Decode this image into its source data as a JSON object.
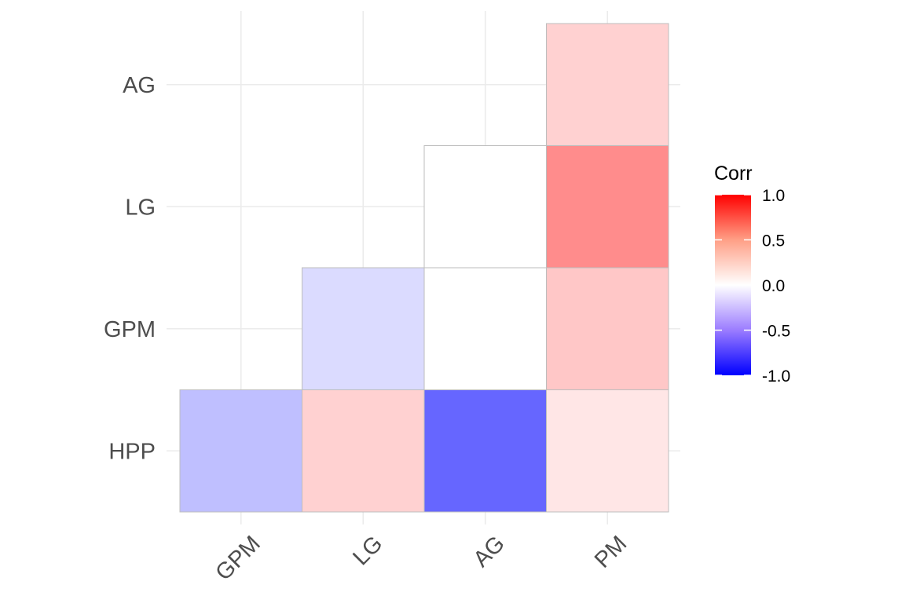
{
  "chart_data": {
    "type": "heatmap",
    "x_categories": [
      "GPM",
      "LG",
      "AG",
      "PM"
    ],
    "y_categories": [
      "HPP",
      "GPM",
      "LG",
      "AG"
    ],
    "cells": [
      {
        "x": "GPM",
        "y": "HPP",
        "value": -0.25
      },
      {
        "x": "LG",
        "y": "HPP",
        "value": 0.18
      },
      {
        "x": "AG",
        "y": "HPP",
        "value": -0.6
      },
      {
        "x": "PM",
        "y": "HPP",
        "value": 0.1
      },
      {
        "x": "LG",
        "y": "GPM",
        "value": -0.14
      },
      {
        "x": "AG",
        "y": "GPM",
        "value": 0.0
      },
      {
        "x": "PM",
        "y": "GPM",
        "value": 0.22
      },
      {
        "x": "AG",
        "y": "LG",
        "value": 0.0
      },
      {
        "x": "PM",
        "y": "LG",
        "value": 0.45
      },
      {
        "x": "PM",
        "y": "AG",
        "value": 0.18
      }
    ],
    "legend": {
      "title": "Corr",
      "ticks": [
        "1.0",
        "0.5",
        "0.0",
        "-0.5",
        "-1.0"
      ],
      "range": [
        -1.0,
        1.0
      ],
      "position": "right"
    },
    "colors": {
      "low": "#0000ff",
      "mid": "#ffffff",
      "high": "#ff0000"
    },
    "grid": true
  }
}
